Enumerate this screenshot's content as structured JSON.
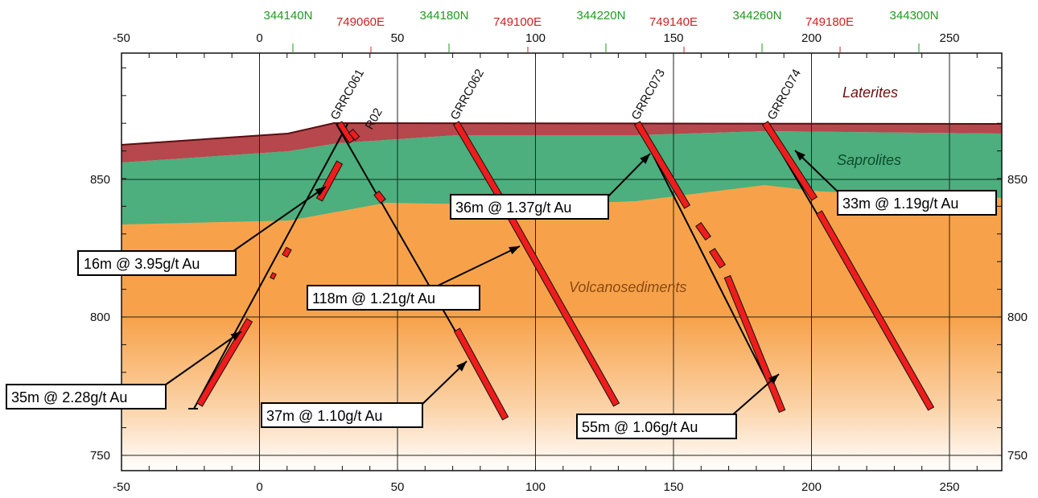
{
  "axes": {
    "x_ticks": [
      "-50",
      "0",
      "50",
      "100",
      "150",
      "200",
      "250"
    ],
    "y_ticks": [
      "850",
      "800",
      "750"
    ]
  },
  "northings": [
    "344140N",
    "344180N",
    "344220N",
    "344260N",
    "344300N"
  ],
  "eastings": [
    "749060E",
    "749100E",
    "749140E",
    "749180E"
  ],
  "units": {
    "laterites": "Laterites",
    "saprolites": "Saprolites",
    "volcanosediments": "Volcanosediments"
  },
  "holes": [
    {
      "id": "GRRC061",
      "label": "GRRC061"
    },
    {
      "id": "R02",
      "label": "R02"
    },
    {
      "id": "GRRC062",
      "label": "GRRC062"
    },
    {
      "id": "GRRC073",
      "label": "GRRC073"
    },
    {
      "id": "GRRC074",
      "label": "GRRC074"
    }
  ],
  "intercepts": [
    {
      "label": "16m @ 3.95g/t Au"
    },
    {
      "label": "35m @ 2.28g/t Au"
    },
    {
      "label": "118m @ 1.21g/t Au"
    },
    {
      "label": "37m @ 1.10g/t Au"
    },
    {
      "label": "36m @ 1.37g/t Au"
    },
    {
      "label": "55m @ 1.06g/t Au"
    },
    {
      "label": "33m @ 1.19g/t Au"
    }
  ],
  "colors": {
    "laterite": "#b5474d",
    "saprolite": "#4caf7d",
    "volcanosediment": "#f7a24a",
    "intercept": "#ee1c1c",
    "easting": "#cc2222",
    "northing": "#1f9a1f",
    "laterite_label": "#6b0f12",
    "saprolite_label": "#0d4d2b",
    "volcano_label": "#8a4a12"
  }
}
